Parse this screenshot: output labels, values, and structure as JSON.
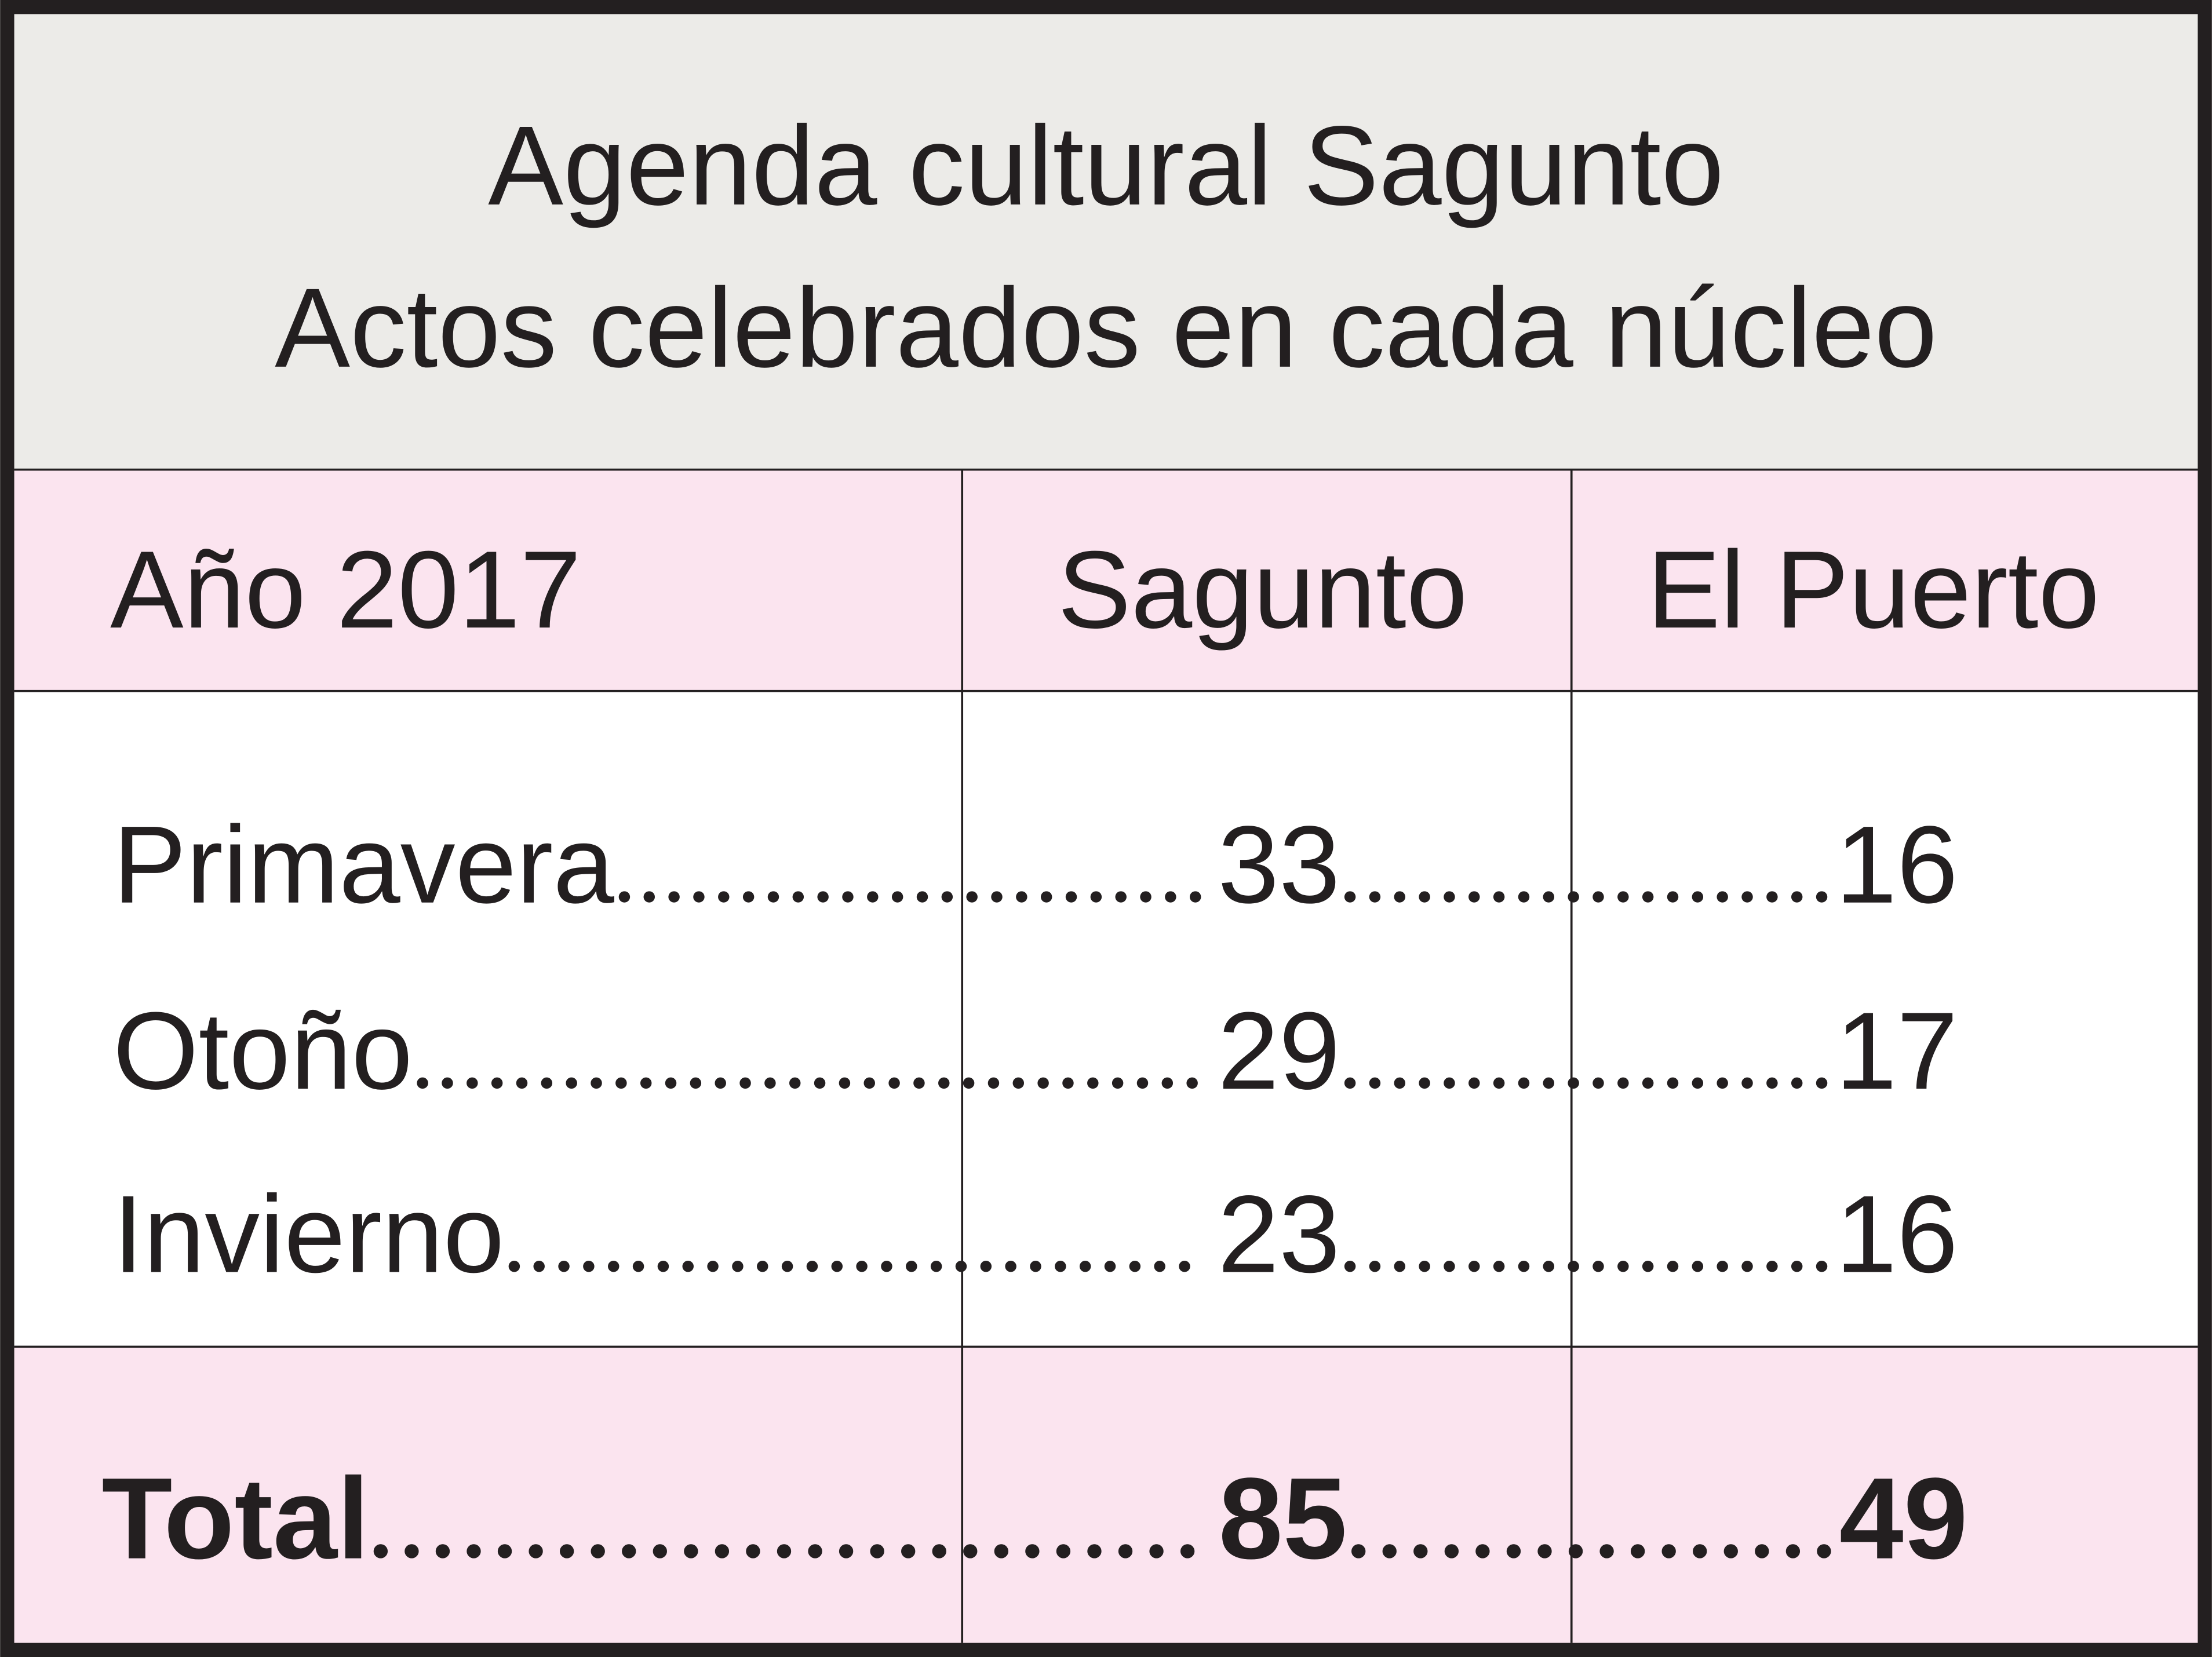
{
  "header": {
    "title": [
      "Agenda cultural Sagunto",
      "Actos celebrados en cada núcleo"
    ]
  },
  "table": {
    "columns": [
      "Año 2017",
      "Sagunto",
      "El Puerto"
    ],
    "rows": [
      [
        "Primavera",
        33,
        16
      ],
      [
        "Otoño",
        29,
        17
      ],
      [
        "Invierno",
        23,
        16
      ]
    ],
    "total": [
      "Total",
      85,
      49
    ]
  }
}
